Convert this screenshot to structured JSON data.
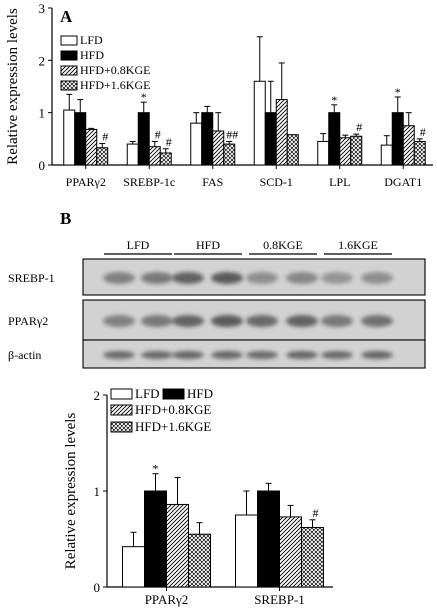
{
  "chart_data": [
    {
      "panel": "A",
      "type": "bar",
      "ylabel": "Relative expression levels",
      "ylim": [
        0,
        3
      ],
      "yticks": [
        0,
        1,
        2,
        3
      ],
      "categories": [
        "PPARγ2",
        "SREBP-1c",
        "FAS",
        "SCD-1",
        "LPL",
        "DGAT1"
      ],
      "series": [
        {
          "name": "LFD",
          "values": [
            1.05,
            0.4,
            0.8,
            1.6,
            0.45,
            0.38
          ],
          "errors": [
            0.3,
            0.05,
            0.2,
            0.85,
            0.15,
            0.18
          ]
        },
        {
          "name": "HFD",
          "values": [
            1.0,
            1.0,
            1.0,
            1.0,
            1.0,
            1.0
          ],
          "errors": [
            0.25,
            0.2,
            0.12,
            0.6,
            0.15,
            0.3
          ]
        },
        {
          "name": "HFD+0.8KGE",
          "values": [
            0.68,
            0.35,
            0.65,
            1.25,
            0.52,
            0.75
          ],
          "errors": [
            0.02,
            0.1,
            0.35,
            0.7,
            0.05,
            0.25
          ]
        },
        {
          "name": "HFD+1.6KGE",
          "values": [
            0.33,
            0.23,
            0.4,
            0.58,
            0.55,
            0.45
          ],
          "errors": [
            0.08,
            0.08,
            0.05,
            0.0,
            0.04,
            0.05
          ]
        }
      ],
      "annotations": [
        {
          "category": 0,
          "series": 3,
          "text": "#"
        },
        {
          "category": 1,
          "series": 1,
          "text": "*"
        },
        {
          "category": 1,
          "series": 2,
          "text": "#"
        },
        {
          "category": 1,
          "series": 3,
          "text": "#"
        },
        {
          "category": 2,
          "series": 3,
          "text": "##"
        },
        {
          "category": 4,
          "series": 1,
          "text": "*"
        },
        {
          "category": 4,
          "series": 3,
          "text": "#"
        },
        {
          "category": 5,
          "series": 1,
          "text": "*"
        },
        {
          "category": 5,
          "series": 3,
          "text": "#"
        }
      ],
      "legend_position": "top-left",
      "grid": false
    },
    {
      "panel": "B",
      "type": "bar",
      "ylabel": "Relative expression levels",
      "ylim": [
        0,
        2
      ],
      "yticks": [
        0,
        1,
        2
      ],
      "categories": [
        "PPARγ2",
        "SREBP-1"
      ],
      "series": [
        {
          "name": "LFD",
          "values": [
            0.42,
            0.75
          ],
          "errors": [
            0.15,
            0.25
          ]
        },
        {
          "name": "HFD",
          "values": [
            1.0,
            1.0
          ],
          "errors": [
            0.18,
            0.08
          ]
        },
        {
          "name": "HFD+0.8KGE",
          "values": [
            0.86,
            0.73
          ],
          "errors": [
            0.28,
            0.12
          ]
        },
        {
          "name": "HFD+1.6KGE",
          "values": [
            0.55,
            0.62
          ],
          "errors": [
            0.12,
            0.08
          ]
        }
      ],
      "annotations": [
        {
          "category": 0,
          "series": 1,
          "text": "*"
        },
        {
          "category": 1,
          "series": 3,
          "text": "#"
        }
      ],
      "legend_position": "top-left",
      "grid": false
    }
  ],
  "panels": {
    "a_label": "A",
    "b_label": "B"
  },
  "blot": {
    "groups": [
      "LFD",
      "HFD",
      "0.8KGE",
      "1.6KGE"
    ],
    "rows": [
      "SREBP-1",
      "PPARγ2",
      "β-actin"
    ]
  },
  "colors": {
    "ink": "#000000",
    "LFD": "#ffffff",
    "HFD": "#000000",
    "HFD+0.8KGE": "diagonal-hatch",
    "HFD+1.6KGE": "cross-hatch",
    "blot_background": "#d2d2d2",
    "blot_band": "#3c3c3c"
  }
}
